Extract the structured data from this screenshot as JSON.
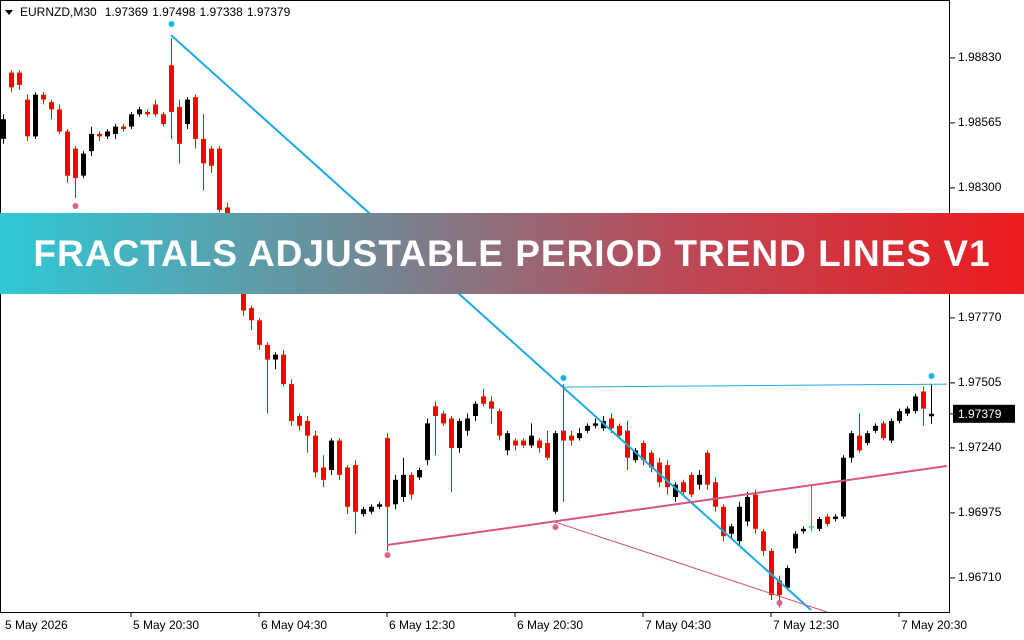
{
  "chart_data": {
    "type": "candlestick",
    "symbol": "EURNZD,M30",
    "banner": "FRACTALS ADJUSTABLE PERIOD TREND LINES V1",
    "categories": [
      "5 May 2026",
      null,
      null,
      null,
      null,
      null,
      null,
      null,
      null,
      null,
      null,
      null,
      null,
      null,
      null,
      null,
      "5 May 20:30",
      null,
      null,
      null,
      null,
      null,
      null,
      null,
      null,
      null,
      null,
      null,
      null,
      null,
      null,
      null,
      "6 May 04:30",
      null,
      null,
      null,
      null,
      null,
      null,
      null,
      null,
      null,
      null,
      null,
      null,
      null,
      null,
      null,
      "6 May 12:30",
      null,
      null,
      null,
      null,
      null,
      null,
      null,
      null,
      null,
      null,
      null,
      null,
      null,
      null,
      null,
      "6 May 20:30",
      null,
      null,
      null,
      null,
      null,
      null,
      null,
      null,
      null,
      null,
      null,
      null,
      null,
      null,
      null,
      "7 May 04:30",
      null,
      null,
      null,
      null,
      null,
      null,
      null,
      null,
      null,
      null,
      null,
      null,
      null,
      null,
      null,
      "7 May 12:30",
      null,
      null,
      null,
      null,
      null,
      null,
      null,
      null,
      null,
      null,
      null,
      null,
      null,
      null,
      null,
      "7 May 20:30",
      null,
      null,
      null,
      null
    ],
    "open": [
      1.985,
      1.9877,
      1.9877,
      1.9866,
      1.9851,
      1.9868,
      1.9865,
      1.9862,
      1.9853,
      1.9846,
      1.9835,
      1.9845,
      1.9852,
      1.9851,
      1.9852,
      1.9855,
      1.9855,
      1.986,
      1.9861,
      1.9864,
      1.986,
      1.988,
      1.9863,
      1.9856,
      1.9867,
      1.985,
      1.9846,
      1.9846,
      1.9822,
      1.9817,
      1.979,
      1.9781,
      1.9776,
      1.9766,
      1.976,
      1.9762,
      1.975,
      1.9737,
      1.9735,
      1.9729,
      1.9716,
      1.9715,
      1.9727,
      1.9716,
      1.9717,
      1.9697,
      1.9698,
      1.97,
      1.9728,
      1.9701,
      1.9704,
      1.9713,
      1.9712,
      1.9719,
      1.9741,
      1.9738,
      1.9736,
      1.9724,
      1.9731,
      1.9737,
      1.9745,
      1.9743,
      1.9739,
      1.9723,
      1.9727,
      1.9727,
      1.9725,
      1.9727,
      1.9726,
      1.9698,
      1.9731,
      1.9729,
      1.9728,
      1.9731,
      1.9733,
      1.9732,
      1.9736,
      1.9733,
      1.9731,
      1.9719,
      1.9726,
      1.9722,
      1.9718,
      1.9717,
      1.9704,
      1.971,
      1.9713,
      1.9709,
      1.9722,
      1.971,
      1.97,
      1.9689,
      1.9686,
      1.9694,
      1.9705,
      1.969,
      1.9682,
      1.967,
      1.9667,
      1.9683,
      1.969,
      1.9692,
      1.9691,
      1.9696,
      1.9695,
      1.9696,
      1.972,
      1.9729,
      1.9726,
      1.9731,
      1.9734,
      1.9727,
      1.9735,
      1.9738,
      1.9739,
      1.9747,
      1.97369
    ],
    "high": [
      1.986,
      1.9878,
      1.9878,
      1.9868,
      1.9869,
      1.9869,
      1.9866,
      1.9864,
      1.9854,
      1.9847,
      1.9845,
      1.9855,
      1.9853,
      1.9854,
      1.9856,
      1.9856,
      1.9861,
      1.9863,
      1.9862,
      1.9866,
      1.9861,
      1.9891,
      1.9866,
      1.9867,
      1.9868,
      1.986,
      1.9847,
      1.9847,
      1.9824,
      1.9818,
      1.9792,
      1.9782,
      1.9777,
      1.9767,
      1.9763,
      1.9764,
      1.9752,
      1.9738,
      1.9737,
      1.9731,
      1.9721,
      1.9728,
      1.9728,
      1.9717,
      1.9719,
      1.97,
      1.9701,
      1.9702,
      1.973,
      1.9713,
      1.972,
      1.9714,
      1.9716,
      1.9736,
      1.9743,
      1.9739,
      1.9737,
      1.9736,
      1.9738,
      1.9743,
      1.9748,
      1.9745,
      1.974,
      1.9731,
      1.9728,
      1.9728,
      1.9734,
      1.9728,
      1.9731,
      1.9731,
      1.975,
      1.9731,
      1.9732,
      1.9734,
      1.9736,
      1.9737,
      1.9738,
      1.9734,
      1.9735,
      1.9724,
      1.9727,
      1.9723,
      1.972,
      1.9719,
      1.971,
      1.9711,
      1.9714,
      1.9715,
      1.9723,
      1.9712,
      1.9701,
      1.9693,
      1.9702,
      1.9706,
      1.9707,
      1.9691,
      1.9683,
      1.9672,
      1.9676,
      1.969,
      1.9692,
      1.9709,
      1.9696,
      1.9697,
      1.9697,
      1.9721,
      1.9731,
      1.9738,
      1.9731,
      1.9734,
      1.9735,
      1.9736,
      1.974,
      1.9741,
      1.9746,
      1.9749,
      1.97498
    ],
    "low": [
      1.9848,
      1.9869,
      1.987,
      1.9849,
      1.985,
      1.9864,
      1.9858,
      1.9852,
      1.9832,
      1.9826,
      1.9834,
      1.9843,
      1.9849,
      1.985,
      1.985,
      1.9853,
      1.9854,
      1.9859,
      1.9859,
      1.9859,
      1.9855,
      1.985,
      1.984,
      1.9854,
      1.9846,
      1.9829,
      1.9836,
      1.982,
      1.9815,
      1.9788,
      1.9778,
      1.9772,
      1.9764,
      1.9738,
      1.9756,
      1.9749,
      1.9733,
      1.9731,
      1.9722,
      1.9712,
      1.9708,
      1.9713,
      1.9711,
      1.9697,
      1.9689,
      1.9696,
      1.9697,
      1.9699,
      1.9682,
      1.9699,
      1.9702,
      1.9703,
      1.9711,
      1.9717,
      1.9721,
      1.9733,
      1.9706,
      1.9722,
      1.9729,
      1.9735,
      1.9741,
      1.9734,
      1.9727,
      1.9721,
      1.9723,
      1.9724,
      1.9724,
      1.9722,
      1.9719,
      1.9697,
      1.9702,
      1.9725,
      1.9727,
      1.973,
      1.9732,
      1.9731,
      1.973,
      1.9728,
      1.9715,
      1.9718,
      1.9717,
      1.9714,
      1.9708,
      1.9705,
      1.9702,
      1.9705,
      1.9704,
      1.9707,
      1.9707,
      1.9698,
      1.9686,
      1.9687,
      1.9684,
      1.9692,
      1.9689,
      1.968,
      1.9662,
      1.9659,
      1.9666,
      1.9681,
      1.9689,
      1.969,
      1.969,
      1.9692,
      1.9694,
      1.9695,
      1.9718,
      1.9722,
      1.9725,
      1.973,
      1.9727,
      1.9726,
      1.9734,
      1.9737,
      1.9738,
      1.9733,
      1.97338
    ],
    "close": [
      1.9858,
      1.9871,
      1.9872,
      1.9851,
      1.9868,
      1.9866,
      1.9862,
      1.9853,
      1.9835,
      1.9834,
      1.9844,
      1.9852,
      1.9851,
      1.9853,
      1.9855,
      1.9854,
      1.986,
      1.9862,
      1.986,
      1.986,
      1.9856,
      1.9861,
      1.9848,
      1.9866,
      1.985,
      1.984,
      1.9839,
      1.9821,
      1.9817,
      1.979,
      1.978,
      1.9776,
      1.9766,
      1.976,
      1.9762,
      1.975,
      1.9735,
      1.9733,
      1.9729,
      1.9714,
      1.9711,
      1.9727,
      1.9713,
      1.97,
      1.9698,
      1.9699,
      1.97,
      1.9701,
      1.97,
      1.9711,
      1.9713,
      1.9705,
      1.9715,
      1.9734,
      1.9737,
      1.9734,
      1.9724,
      1.9735,
      1.9736,
      1.9742,
      1.9742,
      1.974,
      1.9729,
      1.973,
      1.9725,
      1.9725,
      1.9729,
      1.9724,
      1.972,
      1.973,
      1.9727,
      1.9727,
      1.973,
      1.9733,
      1.9734,
      1.9735,
      1.9732,
      1.9729,
      1.972,
      1.9723,
      1.9719,
      1.9716,
      1.971,
      1.9708,
      1.9709,
      1.9706,
      1.9705,
      1.9713,
      1.9709,
      1.97,
      1.9688,
      1.9692,
      1.97,
      1.9704,
      1.9691,
      1.9682,
      1.9664,
      1.9664,
      1.9675,
      1.9689,
      1.9691,
      1.9692,
      1.9695,
      1.9693,
      1.9696,
      1.972,
      1.973,
      1.9723,
      1.973,
      1.9733,
      1.9728,
      1.9735,
      1.9739,
      1.974,
      1.9745,
      1.974,
      1.97379
    ],
    "colors": {
      "up": "#000000",
      "down": "#ff0000",
      "doji": "#00c000"
    },
    "ylim": [
      1.96571,
      1.99066
    ],
    "yticks": [
      {
        "value": 1.9883,
        "label": "1.98830"
      },
      1.98565,
      {
        "value": 1.983,
        "label": "1.98300"
      },
      {
        "value": 1.9777,
        "label": "1.97770"
      },
      1.97505,
      {
        "value": 1.9724,
        "label": "1.97240"
      },
      1.96975,
      {
        "value": 1.9671,
        "label": "1.96710"
      }
    ],
    "trend_lines": [
      {
        "x": [
          21,
          101
        ],
        "y": [
          1.98923,
          1.96579
        ],
        "color": "#1aa9e6",
        "width": 2
      },
      {
        "x": [
          70,
          118
        ],
        "y": [
          1.97488,
          1.975
        ],
        "color": "#1aa9e6",
        "width": 1
      },
      {
        "x": [
          48,
          118
        ],
        "y": [
          1.96844,
          1.97166
        ],
        "color": "#d9547f",
        "width": 2
      },
      {
        "x": [
          69,
          103
        ],
        "y": [
          1.96938,
          1.96571
        ],
        "color": "#d9547f",
        "width": 1
      }
    ],
    "fractals_up": {
      "x": [
        21,
        70,
        116
      ],
      "y": [
        1.98968,
        1.97525,
        1.97533
      ],
      "color": "#17b2ec"
    },
    "fractals_down": {
      "x": [
        9,
        48,
        69,
        97
      ],
      "y": [
        1.98226,
        1.96803,
        1.96917,
        1.96608
      ],
      "color": "#d9648a"
    }
  }
}
